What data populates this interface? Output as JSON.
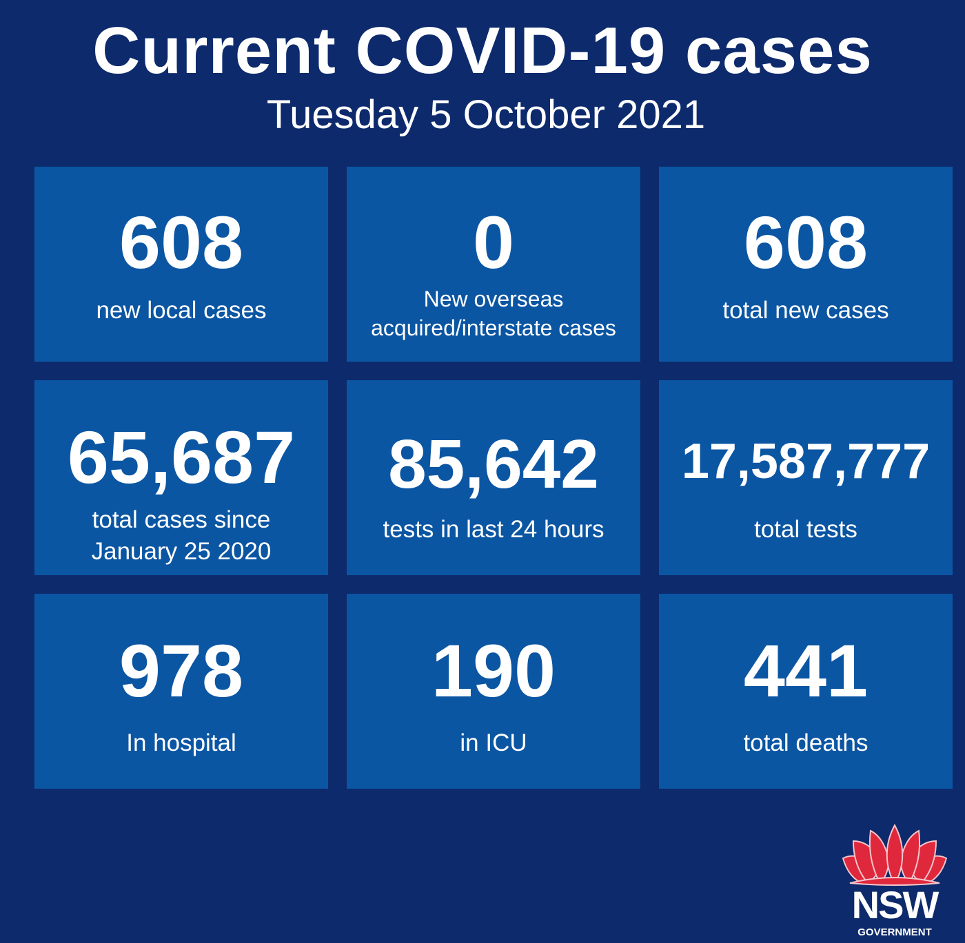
{
  "header": {
    "title": "Current COVID-19 cases",
    "date": "Tuesday 5 October 2021"
  },
  "tiles": [
    {
      "value": "608",
      "label": "new local cases"
    },
    {
      "value": "0",
      "label": "New overseas acquired/interstate cases"
    },
    {
      "value": "608",
      "label": "total new cases"
    },
    {
      "value": "65,687",
      "label": "total cases since January 25 2020"
    },
    {
      "value": "85,642",
      "label": "tests in last 24 hours"
    },
    {
      "value": "17,587,777",
      "label": "total tests"
    },
    {
      "value": "978",
      "label": "In hospital"
    },
    {
      "value": "190",
      "label": "in ICU"
    },
    {
      "value": "441",
      "label": "total deaths"
    }
  ],
  "logo": {
    "name": "NSW",
    "sub": "GOVERNMENT",
    "icon": "waratah-icon"
  },
  "colors": {
    "background": "#0d2a6c",
    "tile": "#0b56a3",
    "waratah": "#e0283c"
  }
}
